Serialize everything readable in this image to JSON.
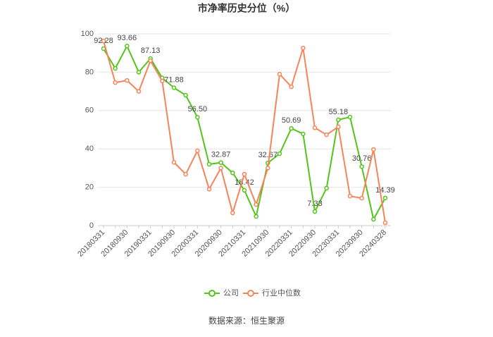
{
  "chart_data": {
    "type": "line",
    "title": "市净率历史分位（%）",
    "source": "数据来源：恒生聚源",
    "categories": [
      "20180331",
      null,
      "20180930",
      null,
      "20190331",
      null,
      "20190930",
      null,
      "20200331",
      null,
      "20200930",
      null,
      "20210331",
      null,
      "20210930",
      null,
      "20220331",
      null,
      "20220930",
      null,
      "20230331",
      null,
      "20230930",
      null,
      "20240328"
    ],
    "series": [
      {
        "name": "公司",
        "color": "#52c41a",
        "values": [
          92.28,
          82,
          93.66,
          80,
          87.13,
          77,
          71.88,
          68,
          56.5,
          32,
          32.87,
          27.5,
          18.42,
          4.8,
          32.67,
          37.5,
          50.69,
          47.8,
          7.33,
          19.5,
          55.18,
          56.6,
          30.76,
          3.3,
          14.39
        ],
        "value_labels": [
          "92.28",
          null,
          "93.66",
          null,
          "87.13",
          null,
          "71.88",
          null,
          "56.50",
          null,
          "32.87",
          null,
          "18.42",
          null,
          "32.67",
          null,
          "50.69",
          null,
          "7.33",
          null,
          "55.18",
          null,
          "30.76",
          null,
          "14.39"
        ]
      },
      {
        "name": "行业中位数",
        "color": "#f5845a",
        "values": [
          96.3,
          74.6,
          75.7,
          70,
          86,
          75.4,
          33,
          26.8,
          39,
          19,
          30,
          6.6,
          26.8,
          11,
          30,
          79,
          72.4,
          92.6,
          51,
          47.4,
          51.5,
          15.4,
          14.3,
          39.7,
          1.5
        ]
      }
    ],
    "ylim": [
      0,
      100
    ],
    "yticks": [
      0,
      20,
      40,
      60,
      80,
      100
    ],
    "grid": true
  }
}
